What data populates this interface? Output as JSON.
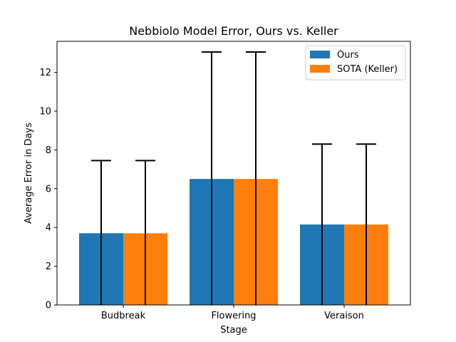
{
  "chart_data": {
    "type": "bar",
    "title": "Nebbiolo Model Error, Ours vs. Keller",
    "xlabel": "Stage",
    "ylabel": "Average Error in Days",
    "categories": [
      "Budbreak",
      "Flowering",
      "Veraison"
    ],
    "ylim": [
      0,
      13.6
    ],
    "yticks": [
      0,
      2,
      4,
      6,
      8,
      10,
      12
    ],
    "grid": false,
    "legend_position": "top-right",
    "series": [
      {
        "name": "Ours",
        "color": "#1f77b4",
        "values": [
          3.7,
          6.5,
          4.15
        ],
        "error_upper": [
          7.45,
          13.05,
          8.3
        ]
      },
      {
        "name": "SOTA (Keller)",
        "color": "#ff7f0e",
        "values": [
          3.7,
          6.5,
          4.15
        ],
        "error_upper": [
          7.45,
          13.05,
          8.3
        ]
      }
    ]
  }
}
